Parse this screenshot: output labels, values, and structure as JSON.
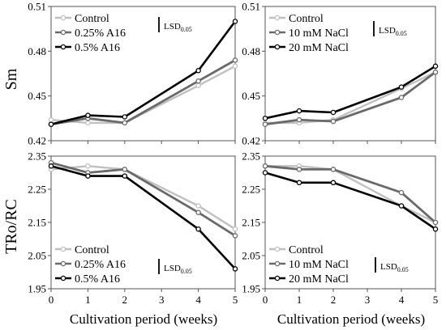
{
  "figure": {
    "ylabel_top": "Sm",
    "ylabel_bottom": "TRo/RC",
    "xlabel": "Cultivation period (weeks)",
    "lsd_main": "LSD",
    "lsd_sub": "0.05"
  },
  "chart_data": [
    {
      "type": "line",
      "panel": "top-left",
      "x": [
        0,
        1,
        2,
        4,
        5
      ],
      "xlim": [
        0,
        5
      ],
      "xticks": [
        "0",
        "1",
        "2",
        "3",
        "4",
        "5"
      ],
      "ylim": [
        0.42,
        0.51
      ],
      "yticks": [
        "0.42",
        "0.45",
        "0.48",
        "0.51"
      ],
      "grid": false,
      "legend_position": "top-left",
      "lsd_label": "LSD0.05",
      "series": [
        {
          "name": "Control",
          "values": [
            0.434,
            0.432,
            0.432,
            0.457,
            0.47
          ],
          "color": "#c0c0c0"
        },
        {
          "name": "0.25% A16",
          "values": [
            0.431,
            0.435,
            0.432,
            0.46,
            0.474
          ],
          "color": "#6a6a6a"
        },
        {
          "name": "0.5% A16",
          "values": [
            0.431,
            0.437,
            0.436,
            0.467,
            0.5
          ],
          "color": "#000000"
        }
      ]
    },
    {
      "type": "line",
      "panel": "top-right",
      "x": [
        0,
        1,
        2,
        4,
        5
      ],
      "xlim": [
        0,
        5
      ],
      "xticks": [
        "0",
        "1",
        "2",
        "3",
        "4",
        "5"
      ],
      "ylim": [
        0.42,
        0.51
      ],
      "yticks": [
        "0.42",
        "0.45",
        "0.48",
        "0.51"
      ],
      "grid": false,
      "legend_position": "top-left",
      "lsd_label": "LSD0.05",
      "series": [
        {
          "name": "Control",
          "values": [
            0.432,
            0.432,
            0.434,
            0.455,
            0.466
          ],
          "color": "#c0c0c0"
        },
        {
          "name": "10 mM NaCl",
          "values": [
            0.431,
            0.434,
            0.433,
            0.449,
            0.466
          ],
          "color": "#6a6a6a"
        },
        {
          "name": "20 mM NaCl",
          "values": [
            0.435,
            0.44,
            0.439,
            0.456,
            0.47
          ],
          "color": "#000000"
        }
      ]
    },
    {
      "type": "line",
      "panel": "bottom-left",
      "x": [
        0,
        1,
        2,
        4,
        5
      ],
      "xlim": [
        0,
        5
      ],
      "xticks": [
        "0",
        "1",
        "2",
        "3",
        "4",
        "5"
      ],
      "ylim": [
        1.95,
        2.35
      ],
      "yticks": [
        "1.95",
        "2.05",
        "2.15",
        "2.25",
        "2.35"
      ],
      "grid": false,
      "legend_position": "bottom-left",
      "lsd_label": "LSD0.05",
      "series": [
        {
          "name": "Control",
          "values": [
            2.31,
            2.32,
            2.31,
            2.2,
            2.13
          ],
          "color": "#c0c0c0"
        },
        {
          "name": "0.25% A16",
          "values": [
            2.33,
            2.3,
            2.31,
            2.18,
            2.11
          ],
          "color": "#6a6a6a"
        },
        {
          "name": "0.5% A16",
          "values": [
            2.32,
            2.29,
            2.29,
            2.13,
            2.01
          ],
          "color": "#000000"
        }
      ]
    },
    {
      "type": "line",
      "panel": "bottom-right",
      "x": [
        0,
        1,
        2,
        4,
        5
      ],
      "xlim": [
        0,
        5
      ],
      "xticks": [
        "0",
        "1",
        "2",
        "3",
        "4",
        "5"
      ],
      "ylim": [
        1.95,
        2.35
      ],
      "yticks": [
        "1.95",
        "2.05",
        "2.15",
        "2.25",
        "2.35"
      ],
      "grid": false,
      "legend_position": "bottom-left",
      "lsd_label": "LSD0.05",
      "series": [
        {
          "name": "Control",
          "values": [
            2.32,
            2.32,
            2.31,
            2.2,
            2.15
          ],
          "color": "#c0c0c0"
        },
        {
          "name": "10 mM NaCl",
          "values": [
            2.32,
            2.31,
            2.31,
            2.24,
            2.15
          ],
          "color": "#6a6a6a"
        },
        {
          "name": "20 mM NaCl",
          "values": [
            2.3,
            2.27,
            2.27,
            2.2,
            2.13
          ],
          "color": "#000000"
        }
      ]
    }
  ]
}
